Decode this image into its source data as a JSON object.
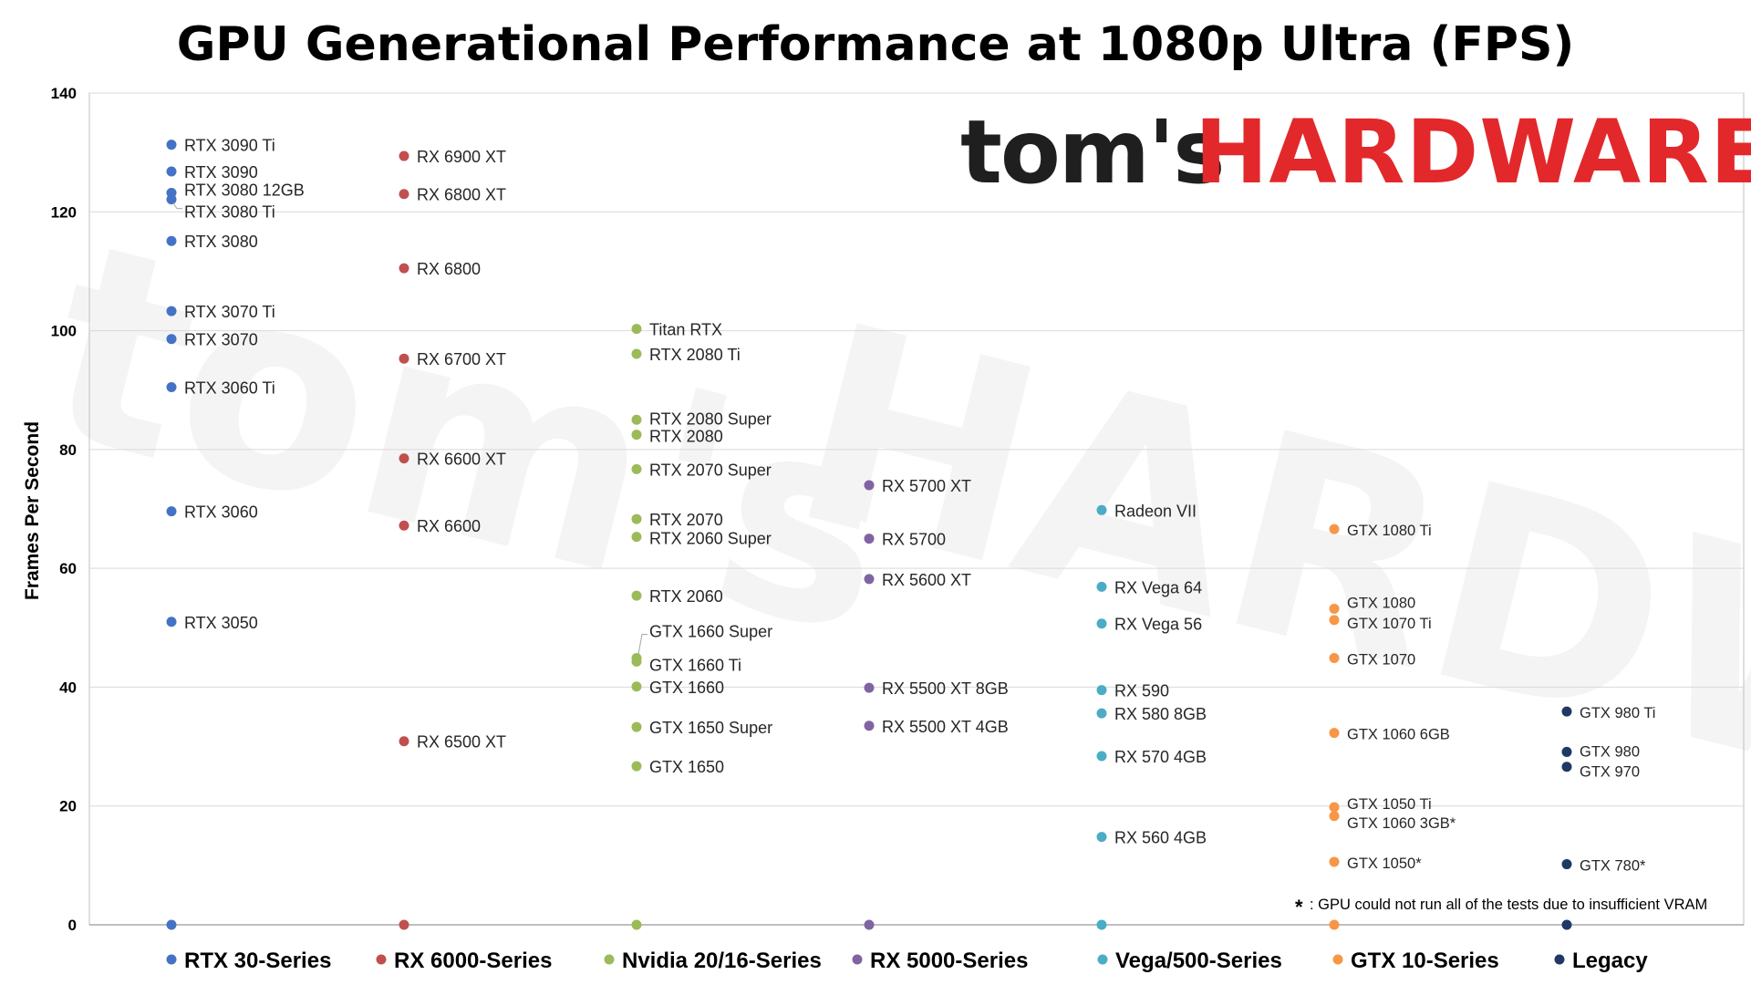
{
  "title": "GPU Generational Performance at 1080p Ultra (FPS)",
  "logo": {
    "text_dark": "tom's",
    "text_red": "HARDWARE",
    "dark_color": "#1f1f1f",
    "red_color": "#e2282b"
  },
  "footnote": {
    "symbol": "*",
    "text": ": GPU could not run all of the tests due to insufficient VRAM"
  },
  "chart_data": {
    "type": "scatter",
    "title": "GPU Generational Performance at 1080p Ultra (FPS)",
    "ylabel": "Frames Per Second",
    "xlabel": "",
    "ylim": [
      0,
      140
    ],
    "yticks": [
      0,
      20,
      40,
      60,
      80,
      100,
      120,
      140
    ],
    "grid": "horizontal",
    "legend_position": "bottom",
    "categories": [
      "RTX 30-Series",
      "RX 6000-Series",
      "Nvidia 20/16-Series",
      "RX 5000-Series",
      "Vega/500-Series",
      "GTX 10-Series",
      "Legacy"
    ],
    "series": [
      {
        "name": "RTX 30-Series",
        "color": "#4472c4",
        "points": [
          {
            "label": "RTX 3090 Ti",
            "value": 131.3
          },
          {
            "label": "RTX 3090",
            "value": 126.8
          },
          {
            "label": "RTX 3080 12GB",
            "value": 123.2
          },
          {
            "label": "RTX 3080 Ti",
            "value": 122.1
          },
          {
            "label": "RTX 3080",
            "value": 115.1
          },
          {
            "label": "RTX 3070 Ti",
            "value": 103.3
          },
          {
            "label": "RTX 3070",
            "value": 98.6
          },
          {
            "label": "RTX 3060 Ti",
            "value": 90.5
          },
          {
            "label": "RTX 3060",
            "value": 69.6
          },
          {
            "label": "RTX 3050",
            "value": 51.0
          }
        ]
      },
      {
        "name": "RX 6000-Series",
        "color": "#c0504d",
        "points": [
          {
            "label": "RX 6900 XT",
            "value": 129.4
          },
          {
            "label": "RX 6800 XT",
            "value": 123.0
          },
          {
            "label": "RX 6800",
            "value": 110.5
          },
          {
            "label": "RX 6700 XT",
            "value": 95.3
          },
          {
            "label": "RX 6600 XT",
            "value": 78.5
          },
          {
            "label": "RX 6600",
            "value": 67.2
          },
          {
            "label": "RX 6500 XT",
            "value": 30.9
          }
        ]
      },
      {
        "name": "Nvidia 20/16-Series",
        "color": "#9bbb59",
        "points": [
          {
            "label": "Titan RTX",
            "value": 100.3
          },
          {
            "label": "RTX 2080 Ti",
            "value": 96.1
          },
          {
            "label": "RTX 2080 Super",
            "value": 85.0
          },
          {
            "label": "RTX 2080",
            "value": 82.5
          },
          {
            "label": "RTX 2070 Super",
            "value": 76.7
          },
          {
            "label": "RTX 2070",
            "value": 68.3
          },
          {
            "label": "RTX 2060 Super",
            "value": 65.3
          },
          {
            "label": "RTX 2060",
            "value": 55.4
          },
          {
            "label": "GTX 1660 Super",
            "value": 44.9
          },
          {
            "label": "GTX 1660 Ti",
            "value": 44.3
          },
          {
            "label": "GTX 1660",
            "value": 40.1
          },
          {
            "label": "GTX 1650 Super",
            "value": 33.3
          },
          {
            "label": "GTX 1650",
            "value": 26.7
          }
        ]
      },
      {
        "name": "RX 5000-Series",
        "color": "#8064a2",
        "points": [
          {
            "label": "RX 5700 XT",
            "value": 74.0
          },
          {
            "label": "RX 5700",
            "value": 65.0
          },
          {
            "label": "RX 5600 XT",
            "value": 58.2
          },
          {
            "label": "RX 5500 XT 8GB",
            "value": 39.9
          },
          {
            "label": "RX 5500 XT 4GB",
            "value": 33.5
          }
        ]
      },
      {
        "name": "Vega/500-Series",
        "color": "#4bacc6",
        "points": [
          {
            "label": "Radeon VII",
            "value": 69.8
          },
          {
            "label": "RX Vega 64",
            "value": 56.9
          },
          {
            "label": "RX Vega 56",
            "value": 50.7
          },
          {
            "label": "RX 590",
            "value": 39.5
          },
          {
            "label": "RX 580 8GB",
            "value": 35.6
          },
          {
            "label": "RX 570 4GB",
            "value": 28.4
          },
          {
            "label": "RX 560 4GB",
            "value": 14.8
          }
        ]
      },
      {
        "name": "GTX 10-Series",
        "color": "#f79646",
        "points": [
          {
            "label": "GTX 1080 Ti",
            "value": 66.6
          },
          {
            "label": "GTX 1080",
            "value": 53.2
          },
          {
            "label": "GTX 1070 Ti",
            "value": 51.3
          },
          {
            "label": "GTX 1070",
            "value": 44.9
          },
          {
            "label": "GTX 1060 6GB",
            "value": 32.3
          },
          {
            "label": "GTX 1050 Ti",
            "value": 19.8
          },
          {
            "label": "GTX 1060 3GB*",
            "value": 18.3
          },
          {
            "label": "GTX 1050*",
            "value": 10.6
          }
        ]
      },
      {
        "name": "Legacy",
        "color": "#1f3864",
        "points": [
          {
            "label": "GTX 980 Ti",
            "value": 35.9
          },
          {
            "label": "GTX 980",
            "value": 29.1
          },
          {
            "label": "GTX 970",
            "value": 26.6
          },
          {
            "label": "GTX 780*",
            "value": 10.2
          }
        ]
      }
    ]
  }
}
